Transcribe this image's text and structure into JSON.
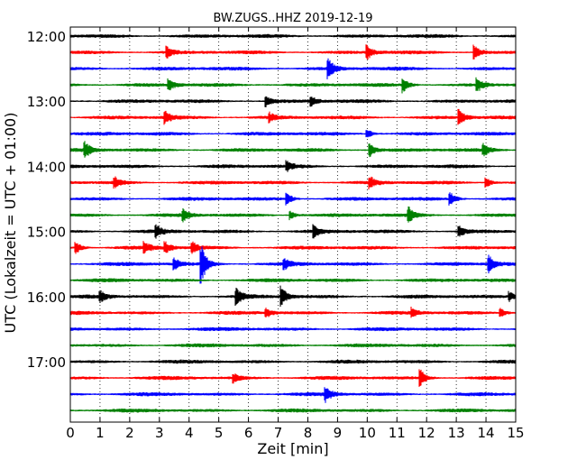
{
  "chart_data": {
    "type": "line",
    "title": "BW.ZUGS..HHZ 2019-12-19",
    "xlabel": "Zeit  [min]",
    "ylabel": "UTC (Lokalzeit = UTC + 01:00)",
    "xlim": [
      0,
      15
    ],
    "x_ticks": [
      "0",
      "1",
      "2",
      "3",
      "4",
      "5",
      "6",
      "7",
      "8",
      "9",
      "10",
      "11",
      "12",
      "13",
      "14",
      "15"
    ],
    "y_ticks": [
      "12:00",
      "13:00",
      "14:00",
      "15:00",
      "16:00",
      "17:00"
    ],
    "grid": "vertical dotted",
    "colors": {
      "black": "#000000",
      "red": "#ff0000",
      "blue": "#0000ff",
      "green": "#008000"
    },
    "series": [
      {
        "start": "12:00",
        "color": "black",
        "events": []
      },
      {
        "start": "12:15",
        "color": "red",
        "events": [
          [
            3.25,
            6
          ],
          [
            10.0,
            8
          ],
          [
            13.6,
            9
          ]
        ]
      },
      {
        "start": "12:30",
        "color": "blue",
        "events": [
          [
            8.7,
            10
          ]
        ]
      },
      {
        "start": "12:45",
        "color": "green",
        "events": [
          [
            3.3,
            7
          ],
          [
            11.2,
            8
          ],
          [
            13.7,
            8
          ]
        ]
      },
      {
        "start": "13:00",
        "color": "black",
        "events": [
          [
            6.6,
            6
          ],
          [
            8.1,
            5
          ]
        ]
      },
      {
        "start": "13:15",
        "color": "red",
        "events": [
          [
            3.2,
            7
          ],
          [
            6.7,
            5
          ],
          [
            13.1,
            8
          ]
        ]
      },
      {
        "start": "13:30",
        "color": "blue",
        "events": [
          [
            10.0,
            5
          ]
        ]
      },
      {
        "start": "13:45",
        "color": "green",
        "events": [
          [
            0.5,
            8
          ],
          [
            10.1,
            7
          ],
          [
            13.9,
            7
          ]
        ]
      },
      {
        "start": "14:00",
        "color": "black",
        "events": [
          [
            7.3,
            5
          ]
        ]
      },
      {
        "start": "14:15",
        "color": "red",
        "events": [
          [
            1.5,
            6
          ],
          [
            10.1,
            6
          ],
          [
            14.0,
            6
          ]
        ]
      },
      {
        "start": "14:30",
        "color": "blue",
        "events": [
          [
            7.3,
            6
          ],
          [
            12.8,
            7
          ]
        ]
      },
      {
        "start": "14:45",
        "color": "green",
        "events": [
          [
            3.8,
            6
          ],
          [
            7.4,
            5
          ],
          [
            11.4,
            8
          ]
        ]
      },
      {
        "start": "15:00",
        "color": "black",
        "events": [
          [
            2.9,
            6
          ],
          [
            8.2,
            6
          ],
          [
            13.1,
            6
          ]
        ]
      },
      {
        "start": "15:15",
        "color": "red",
        "events": [
          [
            0.2,
            6
          ],
          [
            2.5,
            6
          ],
          [
            3.2,
            6
          ],
          [
            4.1,
            7
          ]
        ]
      },
      {
        "start": "15:30",
        "color": "blue",
        "events": [
          [
            3.5,
            7
          ],
          [
            4.4,
            22
          ],
          [
            7.2,
            6
          ],
          [
            14.1,
            9
          ]
        ]
      },
      {
        "start": "15:45",
        "color": "green",
        "events": []
      },
      {
        "start": "16:00",
        "color": "black",
        "events": [
          [
            1.0,
            6
          ],
          [
            5.6,
            9
          ],
          [
            7.1,
            11
          ],
          [
            14.8,
            5
          ]
        ]
      },
      {
        "start": "16:15",
        "color": "red",
        "events": [
          [
            6.6,
            5
          ],
          [
            11.5,
            5
          ],
          [
            14.5,
            5
          ]
        ]
      },
      {
        "start": "16:30",
        "color": "blue",
        "events": []
      },
      {
        "start": "16:45",
        "color": "green",
        "events": []
      },
      {
        "start": "17:00",
        "color": "black",
        "events": []
      },
      {
        "start": "17:15",
        "color": "red",
        "events": [
          [
            5.5,
            5
          ],
          [
            11.8,
            9
          ]
        ]
      },
      {
        "start": "17:30",
        "color": "blue",
        "events": [
          [
            8.6,
            8
          ]
        ]
      },
      {
        "start": "17:45",
        "color": "green",
        "events": []
      }
    ]
  }
}
